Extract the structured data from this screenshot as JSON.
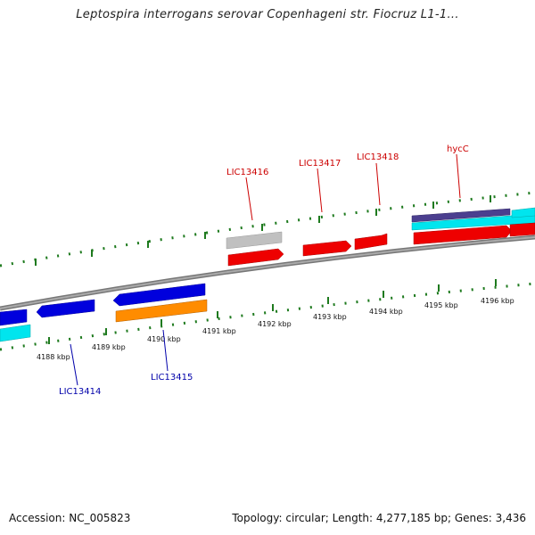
{
  "header": {
    "title": "Leptospira interrogans serovar Copenhageni str. Fiocruz L1-1..."
  },
  "footer": {
    "accession": "Accession: NC_005823",
    "summary": "Topology: circular; Length: 4,277,185 bp; Genes: 3,436"
  },
  "scale": {
    "ticks": [
      "4188 kbp",
      "4189 kbp",
      "4190 kbp",
      "4191 kbp",
      "4192 kbp",
      "4193 kbp",
      "4194 kbp",
      "4195 kbp",
      "4196 kbp"
    ]
  },
  "genes": {
    "top_labels": [
      "LIC13416",
      "LIC13417",
      "LIC13418",
      "hycC"
    ],
    "bottom_labels": [
      "LIC13414",
      "LIC13415"
    ]
  },
  "colors": {
    "top_label": "#cc0000",
    "bottom_label": "#0000aa",
    "forward_gene": "#ee0000",
    "reverse_gene": "#0000dd",
    "cyan_feature": "#00e5ee",
    "orange_feature": "#ff8c00",
    "purple_feature": "#4b3f8f",
    "gray_feature": "#bbbbbb",
    "backbone": "#888888",
    "tick": "#1e7a1e"
  }
}
